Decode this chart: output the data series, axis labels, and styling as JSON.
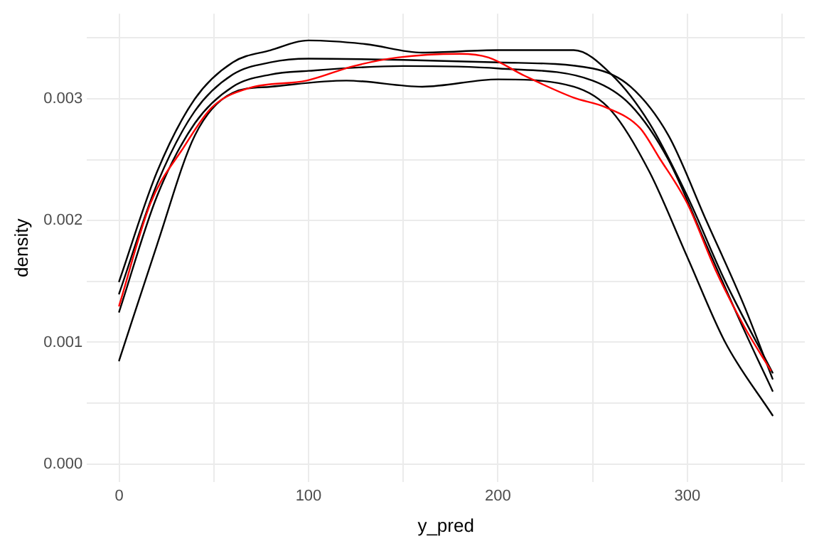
{
  "chart_data": {
    "type": "line",
    "xlabel": "y_pred",
    "ylabel": "density",
    "grid": true,
    "legend": false,
    "marker": "none",
    "line_style": "solid",
    "xlim": [
      -17,
      362
    ],
    "ylim": [
      -0.00015,
      0.0037
    ],
    "xticks": [
      0,
      {
        "value": 50,
        "label": null
      },
      100,
      {
        "value": 150,
        "label": null
      },
      200,
      {
        "value": 250,
        "label": null
      },
      300,
      {
        "value": 350,
        "label": null
      }
    ],
    "yticks": [
      {
        "value": 0,
        "label": "0.000"
      },
      {
        "value": 0.0005,
        "label": null
      },
      0.001,
      {
        "value": 0.0015,
        "label": null
      },
      0.002,
      {
        "value": 0.0025,
        "label": null
      },
      0.003,
      {
        "value": 0.0035,
        "label": null
      }
    ],
    "series": [
      {
        "color": "#000000",
        "x": [
          0,
          20,
          40,
          60,
          80,
          100,
          130,
          160,
          200,
          240,
          260,
          280,
          300,
          320,
          345
        ],
        "values": [
          0.0015,
          0.0024,
          0.003,
          0.0033,
          0.0034,
          0.00348,
          0.00345,
          0.00338,
          0.0034,
          0.0034,
          0.0032,
          0.0028,
          0.0022,
          0.0015,
          0.00075
        ]
      },
      {
        "color": "#000000",
        "x": [
          0,
          20,
          40,
          60,
          80,
          100,
          150,
          200,
          250,
          270,
          290,
          310,
          330,
          345
        ],
        "values": [
          0.00125,
          0.0022,
          0.0028,
          0.0031,
          0.0032,
          0.00323,
          0.00327,
          0.00325,
          0.00315,
          0.00295,
          0.0025,
          0.0018,
          0.0011,
          0.0006
        ]
      },
      {
        "color": "#000000",
        "x": [
          0,
          20,
          40,
          60,
          80,
          100,
          150,
          200,
          250,
          270,
          290,
          310,
          330,
          345
        ],
        "values": [
          0.0014,
          0.0023,
          0.0029,
          0.0032,
          0.0033,
          0.00333,
          0.00332,
          0.0033,
          0.00325,
          0.0031,
          0.0027,
          0.002,
          0.0013,
          0.0007
        ]
      },
      {
        "color": "#000000",
        "x": [
          0,
          20,
          40,
          60,
          80,
          120,
          160,
          200,
          240,
          260,
          280,
          300,
          320,
          345
        ],
        "values": [
          0.00085,
          0.0018,
          0.0027,
          0.00305,
          0.0031,
          0.00315,
          0.0031,
          0.00316,
          0.0031,
          0.0029,
          0.0024,
          0.0017,
          0.001,
          0.0004
        ]
      },
      {
        "color": "#ff0000",
        "x": [
          0,
          16.5,
          34,
          49,
          69,
          99,
          124,
          147,
          180,
          195,
          214,
          240,
          257,
          275,
          285,
          300,
          315,
          330,
          344
        ],
        "values": [
          0.0013,
          0.00214,
          0.0026,
          0.00293,
          0.00309,
          0.00315,
          0.00327,
          0.00334,
          0.00337,
          0.00334,
          0.00319,
          0.00301,
          0.00293,
          0.00276,
          0.00252,
          0.00214,
          0.00159,
          0.00113,
          0.00077
        ]
      }
    ]
  }
}
